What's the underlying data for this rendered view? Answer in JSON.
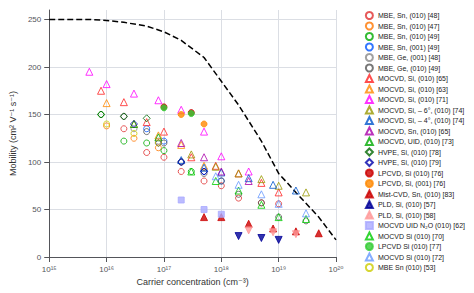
{
  "chart_data": {
    "type": "scatter",
    "xlabel": "Carrier concentration (cm⁻³)",
    "ylabel": "Mobility (cm² V⁻¹ s⁻¹)",
    "log": "x",
    "xlim": [
      1000000000000000.0,
      1e+20
    ],
    "xticks": [
      {
        "value": 1000000000000000.0,
        "label": "10¹⁵"
      },
      {
        "value": 1e+16,
        "label": "10¹⁶"
      },
      {
        "value": 1e+17,
        "label": "10¹⁷"
      },
      {
        "value": 1e+18,
        "label": "10¹⁸"
      },
      {
        "value": 1e+19,
        "label": "10¹⁹"
      },
      {
        "value": 1e+20,
        "label": "10²⁰"
      }
    ],
    "ylim": [
      0,
      260
    ],
    "yticks": [
      0,
      50,
      100,
      150,
      200,
      250
    ],
    "grid": true,
    "legend": "right",
    "series": [
      {
        "type": "line",
        "line_style": "dashed",
        "color": "#000000",
        "x": [
          1000000000000000.0,
          2000000000000000.0,
          5000000000000000.0,
          1e+16,
          2e+16,
          5e+16,
          1e+17,
          2e+17,
          5e+17,
          1e+18,
          2e+18,
          5e+18,
          1e+19,
          2e+19,
          5e+19,
          1e+20
        ],
        "values": [
          250,
          250,
          250,
          249,
          247,
          243,
          237,
          228,
          210,
          185,
          160,
          122,
          88,
          68,
          42,
          18
        ]
      },
      {
        "name": "MBE, Sn, (010) [48]",
        "color": "#e03030",
        "marker": "circle-open",
        "x": [
          2e+16,
          5e+16,
          1e+17,
          2e+17,
          5e+17,
          1e+18,
          2e+18,
          5e+18,
          1e+19
        ],
        "values": [
          135,
          110,
          105,
          90,
          80,
          75,
          62,
          57,
          56
        ]
      },
      {
        "name": "MBE, Sn, (010) [47]",
        "color": "#ff7700",
        "marker": "circle-open",
        "x": [
          1e+16,
          3e+16,
          8e+16,
          2e+17
        ],
        "values": [
          138,
          125,
          115,
          100
        ]
      },
      {
        "name": "MBE, Sn, (010) [49]",
        "color": "#00aa00",
        "marker": "circle-open",
        "x": [
          8000000000000000.0,
          2e+16,
          5e+16,
          1e+17,
          3e+17
        ],
        "values": [
          150,
          122,
          120,
          112,
          90
        ]
      },
      {
        "name": "MBE, Sn, (001) [49]",
        "color": "#0055ff",
        "marker": "circle-open",
        "x": [
          5e+16,
          1e+17,
          2e+17,
          5e+17,
          1e+18
        ],
        "values": [
          135,
          122,
          100,
          90,
          80
        ]
      },
      {
        "name": "MBE, Ge, (001) [48]",
        "color": "#888888",
        "marker": "circle-open",
        "x": [
          3e+16,
          8e+16
        ],
        "values": [
          135,
          122
        ]
      },
      {
        "name": "MBE, Ge, (010) [49]",
        "color": "#555555",
        "marker": "circle-open",
        "x": [
          2e+16,
          5e+16,
          1e+17,
          2e+17,
          5e+17,
          1e+18,
          2e+18,
          5e+18,
          1e+19,
          3e+19
        ],
        "values": [
          148,
          132,
          120,
          100,
          88,
          80,
          66,
          57,
          42,
          38
        ]
      },
      {
        "name": "MOCVD, Si, (010) [65]",
        "color": "#ff2222",
        "marker": "triangle-open",
        "x": [
          8000000000000000.0,
          2e+16,
          5e+16,
          1e+17,
          3e+17,
          8e+17,
          2e+18,
          5e+18,
          1e+19
        ],
        "values": [
          175,
          163,
          142,
          132,
          105,
          96,
          88,
          78,
          68
        ]
      },
      {
        "name": "MOCVD, Si, (010) [63]",
        "color": "#ff8800",
        "marker": "triangle-open",
        "x": [
          1e+16,
          3e+16,
          8e+16,
          2e+17,
          5e+17
        ],
        "values": [
          162,
          140,
          128,
          118,
          96
        ]
      },
      {
        "name": "MOCVD, Si, (010) [71]",
        "color": "#ff00ff",
        "marker": "triangle-open",
        "x": [
          5000000000000000.0,
          1e+16,
          3e+16,
          8e+16,
          2e+17,
          5e+17,
          1e+18,
          3e+18
        ],
        "values": [
          195,
          182,
          172,
          165,
          155,
          132,
          106,
          90
        ]
      },
      {
        "name": "MOCVD, Si, – 6°, (010) [74]",
        "color": "#999900",
        "marker": "triangle-open",
        "x": [
          3e+17,
          8e+17,
          2e+18,
          5e+18,
          1e+19,
          3e+19
        ],
        "values": [
          108,
          95,
          88,
          82,
          75,
          68
        ]
      },
      {
        "name": "MOCVD, Si, – 4°, (010) [74]",
        "color": "#0055cc",
        "marker": "triangle-open",
        "x": [
          2e+17,
          5e+17,
          1e+18,
          3e+18,
          8e+18,
          2e+19
        ],
        "values": [
          102,
          94,
          89,
          83,
          76,
          70
        ]
      },
      {
        "name": "MOCVD, Sn, (010) [65]",
        "color": "#aa00aa",
        "marker": "triangle-open",
        "x": [
          2e+17,
          5e+17,
          1e+18,
          3e+18
        ],
        "values": [
          120,
          105,
          90,
          80
        ]
      },
      {
        "name": "MOCVD, UID, (010) [73]",
        "color": "#00aa00",
        "marker": "triangle-open",
        "x": [
          3e+16,
          8e+16
        ],
        "values": [
          140,
          126
        ]
      },
      {
        "name": "HVPE, Si, (010) [78]",
        "color": "#006600",
        "marker": "diamond-open",
        "x": [
          8000000000000000.0,
          2e+16,
          5e+16
        ],
        "values": [
          150,
          148,
          146
        ]
      },
      {
        "name": "HVPE, Si, (010) [79]",
        "color": "#0000aa",
        "marker": "diamond-open",
        "x": [
          3e+16,
          8e+16,
          2e+17,
          5e+17
        ],
        "values": [
          140,
          120,
          100,
          90
        ]
      },
      {
        "name": "LPCVD, Si (010) [76]",
        "color": "#cc0000",
        "marker": "circle-filled",
        "x": [
          1e+17,
          3e+17
        ],
        "values": [
          158,
          152
        ]
      },
      {
        "name": "LPCVD, Si, (001) [76]",
        "color": "#ff8800",
        "marker": "circle-filled",
        "x": [
          2e+17,
          5e+17
        ],
        "values": [
          150,
          140
        ]
      },
      {
        "name": "Mist-CVD, Sn, (010) [83]",
        "color": "#cc0000",
        "marker": "triangle-filled",
        "x": [
          5e+17,
          1e+18,
          3e+18,
          8e+18,
          2e+19,
          5e+19
        ],
        "values": [
          42,
          42,
          35,
          30,
          27,
          25
        ]
      },
      {
        "name": "PLD, Si, (010) [57]",
        "color": "#000099",
        "marker": "triangle-down-filled",
        "x": [
          2e+18,
          5e+18,
          1e+19
        ],
        "values": [
          22,
          20,
          18
        ]
      },
      {
        "name": "PLD, Si, (010) [58]",
        "color": "#ff9999",
        "marker": "triangle-down-filled",
        "x": [
          3e+18,
          8e+18,
          2e+19
        ],
        "values": [
          28,
          26,
          24
        ]
      },
      {
        "name": "MOCVD UID N₂O (010) [62]",
        "color": "#aaaaff",
        "marker": "square-filled",
        "x": [
          2e+17,
          5e+17,
          1e+18
        ],
        "values": [
          60,
          50,
          45
        ]
      },
      {
        "name": "MOCVD Si (010) [70]",
        "color": "#00cc00",
        "marker": "triangle-open",
        "x": [
          3e+17,
          8e+17,
          2e+18,
          5e+18,
          1e+19,
          3e+19
        ],
        "values": [
          90,
          80,
          70,
          55,
          42,
          40
        ]
      },
      {
        "name": "LPCVD Si (010) [77]",
        "color": "#33cc33",
        "marker": "circle-filled",
        "x": [
          1e+17,
          3e+17
        ],
        "values": [
          157,
          151
        ]
      },
      {
        "name": "MOCVD Si (010) [72]",
        "color": "#6699ff",
        "marker": "triangle-open",
        "x": [
          8e+17,
          2e+18,
          5e+18,
          1e+19,
          3e+19
        ],
        "values": [
          85,
          76,
          66,
          56,
          46
        ]
      },
      {
        "name": "MBE Sn (010) [53]",
        "color": "#cccc00",
        "marker": "circle-open",
        "x": [
          1e+16,
          3e+16,
          8e+16
        ],
        "values": [
          140,
          130,
          120
        ]
      }
    ]
  }
}
